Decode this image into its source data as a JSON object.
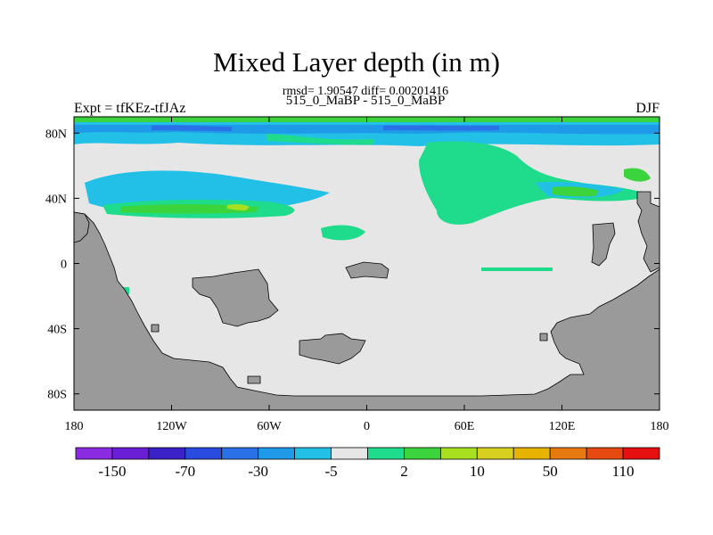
{
  "title": "Mixed Layer depth (in m)",
  "stats": "rmsd= 1.90547 diff= 0.00201416",
  "runs": "515_0_MaBP - 515_0_MaBP",
  "expt_label": "Expt = tfKEz-tfJAz",
  "season": "DJF",
  "x_ticks": [
    "180",
    "120W",
    "60W",
    "0",
    "60E",
    "120E",
    "180"
  ],
  "y_ticks": [
    "80N",
    "40N",
    "0",
    "40S",
    "80S"
  ],
  "colorbar": {
    "colors": [
      "#8a2be2",
      "#6a1fd6",
      "#3a22c8",
      "#2a4be0",
      "#2a70e6",
      "#1f9ae8",
      "#22c0e6",
      "#e6e6e6",
      "#1edc8c",
      "#3cd43c",
      "#a8e020",
      "#d8d020",
      "#e6b400",
      "#e67a10",
      "#e64a10",
      "#e61010"
    ],
    "labels": [
      "-150",
      "-70",
      "-30",
      "-5",
      "2",
      "10",
      "50",
      "110"
    ]
  },
  "map_colors": {
    "land": "#9a9a9a",
    "neutral": "#e6e6e6",
    "cyan": "#22c0e6",
    "light_blue": "#1f9ae8",
    "blue": "#2a70e6",
    "green": "#1edc8c",
    "dark_green": "#3cd43c",
    "yellow_green": "#a8e020"
  }
}
